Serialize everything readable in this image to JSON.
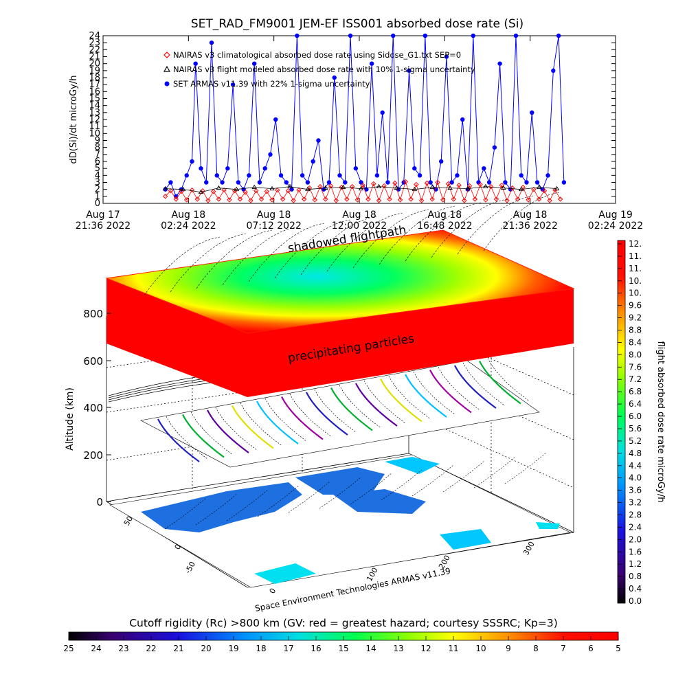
{
  "chart_data": [
    {
      "type": "scatter",
      "title": "SET_RAD_FM9001  JEM-EF ISS001 absorbed dose rate (Si)",
      "ylabel": "dD(Si)/dt microGy/h",
      "ylim": [
        0,
        24
      ],
      "y_ticks": [
        "0",
        "1",
        "2",
        "3",
        "4",
        "5",
        "6",
        "7",
        "8",
        "9",
        "10",
        "11",
        "12",
        "13",
        "14",
        "15",
        "16",
        "17",
        "18",
        "19",
        "20",
        "21",
        "22",
        "23",
        "24"
      ],
      "xlim_hours": [
        0,
        28.8
      ],
      "x_ticks": [
        {
          "hours": 0.0,
          "line1": "Aug 17",
          "line2": "21:36 2022"
        },
        {
          "hours": 4.8,
          "line1": "Aug 18",
          "line2": "02:24 2022"
        },
        {
          "hours": 9.6,
          "line1": "Aug 18",
          "line2": "07:12 2022"
        },
        {
          "hours": 14.4,
          "line1": "Aug 18",
          "line2": "12:00 2022"
        },
        {
          "hours": 19.2,
          "line1": "Aug 18",
          "line2": "16:48 2022"
        },
        {
          "hours": 24.0,
          "line1": "Aug 18",
          "line2": "21:36 2022"
        },
        {
          "hours": 28.8,
          "line1": "Aug 19",
          "line2": "02:24 2022"
        }
      ],
      "legend": [
        {
          "marker": "diamond",
          "color": "#ff0000",
          "text": "NAIRAS v3 climatological absorbed dose rate using Sidose_G1.txt SEP=0"
        },
        {
          "marker": "triangle",
          "color": "#000000",
          "text": "NAIRAS v3 flight modeled absorbed dose rate with 10% 1-sigma uncertainty"
        },
        {
          "marker": "dot",
          "color": "#0000ff",
          "text": "SET ARMAS v11.39 with 22% 1-sigma uncertainty"
        }
      ],
      "legend_position": "top-left",
      "series": [
        {
          "marker": "dot",
          "color": "#0000ff",
          "x_hours": [
            3.5,
            3.8,
            4.1,
            4.4,
            4.7,
            5.0,
            5.2,
            5.5,
            5.8,
            6.1,
            6.4,
            6.7,
            7.0,
            7.3,
            7.6,
            7.9,
            8.2,
            8.5,
            8.8,
            9.1,
            9.4,
            9.7,
            10.0,
            10.3,
            10.6,
            10.9,
            11.2,
            11.5,
            11.8,
            12.1,
            12.4,
            12.7,
            13.0,
            13.3,
            13.6,
            13.9,
            14.2,
            14.5,
            14.8,
            15.1,
            15.4,
            15.7,
            16.0,
            16.3,
            16.6,
            16.9,
            17.2,
            17.5,
            17.8,
            18.1,
            18.4,
            18.7,
            19.0,
            19.3,
            19.6,
            19.9,
            20.2,
            20.5,
            20.8,
            21.1,
            21.4,
            21.7,
            22.0,
            22.3,
            22.6,
            22.9,
            23.2,
            23.5,
            23.8,
            24.1,
            24.4,
            24.7,
            25.0,
            25.3,
            25.6,
            25.9
          ],
          "values": [
            2,
            3,
            1,
            2,
            4,
            6,
            20,
            5,
            3,
            23,
            4,
            3,
            5,
            17,
            3,
            2,
            4,
            20,
            3,
            5,
            7,
            12,
            4,
            3,
            2,
            24,
            4,
            3,
            6,
            9,
            2,
            3,
            18,
            4,
            3,
            24,
            5,
            3,
            2,
            20,
            4,
            13,
            3,
            24,
            2,
            3,
            19,
            5,
            4,
            24,
            3,
            2,
            6,
            21,
            3,
            4,
            12,
            2,
            24,
            3,
            5,
            3,
            8,
            20,
            3,
            2,
            24,
            4,
            3,
            13,
            3,
            2,
            4,
            19,
            24,
            3
          ]
        },
        {
          "marker": "diamond",
          "color": "#ff0000",
          "x_hours": [
            3.5,
            3.8,
            4.1,
            4.4,
            4.7,
            5.0,
            5.3,
            5.6,
            5.9,
            6.2,
            6.5,
            6.8,
            7.1,
            7.4,
            7.7,
            8.0,
            8.3,
            8.6,
            8.9,
            9.2,
            9.5,
            9.8,
            10.1,
            10.4,
            10.7,
            11.0,
            11.3,
            11.6,
            11.9,
            12.2,
            12.5,
            12.8,
            13.1,
            13.4,
            13.7,
            14.0,
            14.3,
            14.6,
            14.9,
            15.2,
            15.5,
            15.8,
            16.1,
            16.4,
            16.7,
            17.0,
            17.3,
            17.6,
            17.9,
            18.2,
            18.5,
            18.8,
            19.1,
            19.4,
            19.7,
            20.0,
            20.3,
            20.6,
            20.9,
            21.2,
            21.5,
            21.8,
            22.1,
            22.4,
            22.7,
            23.0,
            23.3,
            23.6,
            23.9,
            24.2,
            24.5,
            24.8,
            25.1,
            25.4,
            25.7
          ],
          "values": [
            1.0,
            1.8,
            0.6,
            1.7,
            0.5,
            1.9,
            0.6,
            1.8,
            0.4,
            1.7,
            0.6,
            1.9,
            0.5,
            1.8,
            0.6,
            1.6,
            0.4,
            1.8,
            0.6,
            1.7,
            0.5,
            1.9,
            0.6,
            1.8,
            0.4,
            1.9,
            0.6,
            2.2,
            0.5,
            2.4,
            0.6,
            2.5,
            0.4,
            2.3,
            0.6,
            2.4,
            0.5,
            2.6,
            0.6,
            2.8,
            0.4,
            2.5,
            0.6,
            2.9,
            0.5,
            3.1,
            0.6,
            2.7,
            0.4,
            2.9,
            0.6,
            3.0,
            0.5,
            2.8,
            0.6,
            2.6,
            0.4,
            2.5,
            0.6,
            2.7,
            0.5,
            2.4,
            0.6,
            2.6,
            0.4,
            2.2,
            0.6,
            2.3,
            0.5,
            2.0,
            0.6,
            1.8,
            0.4,
            1.9,
            0.6
          ]
        },
        {
          "marker": "triangle",
          "color": "#000000",
          "x_hours": [
            3.5,
            4.5,
            5.5,
            6.5,
            7.5,
            8.5,
            9.5,
            10.5,
            11.5,
            12.5,
            13.5,
            14.5,
            15.5,
            16.5,
            17.5,
            18.5,
            19.5,
            20.5,
            21.5,
            22.5,
            23.5,
            24.5,
            25.5
          ],
          "values": [
            2.1,
            2.0,
            1.6,
            2.2,
            2.0,
            2.3,
            2.1,
            2.4,
            2.0,
            2.2,
            2.3,
            2.1,
            2.4,
            2.2,
            2.0,
            2.3,
            2.2,
            2.1,
            2.4,
            2.2,
            2.0,
            2.3,
            2.1
          ]
        }
      ]
    },
    {
      "type": "3d-surface",
      "zlabel": "Altitude (km)",
      "z_ticks": [
        "0",
        "200",
        "400",
        "600",
        "800"
      ],
      "lat_ticks": [
        "-50",
        "0",
        "50"
      ],
      "lon_ticks": [
        "0",
        "100",
        "200",
        "300"
      ],
      "annotations": {
        "top": "shadowed flightpath",
        "mid": "precipitating particles"
      },
      "footer": "Space Environment Technologies ARMAS v11.39",
      "colorbar_right": {
        "label": "flight absorbed dose rate microGy/h",
        "ticks": [
          "12.",
          "11.",
          "11.",
          "10.",
          "10.",
          "9.6",
          "9.2",
          "8.8",
          "8.4",
          "8.0",
          "7.6",
          "7.2",
          "6.8",
          "6.4",
          "6.0",
          "5.6",
          "5.2",
          "4.8",
          "4.4",
          "4.0",
          "3.6",
          "3.2",
          "2.8",
          "2.4",
          "2.0",
          "1.6",
          "1.2",
          "0.8",
          "0.4",
          "0.0"
        ]
      },
      "colorbar_bottom": {
        "label": "Cutoff rigidity (Rc) >800 km (GV: red = greatest hazard; courtesy SSSRC; Kp=3)",
        "ticks": [
          "25",
          "24",
          "23",
          "22",
          "21",
          "20",
          "19",
          "18",
          "17",
          "16",
          "15",
          "14",
          "13",
          "12",
          "11",
          "10",
          "9",
          "8",
          "7",
          "6",
          "5"
        ]
      }
    }
  ]
}
